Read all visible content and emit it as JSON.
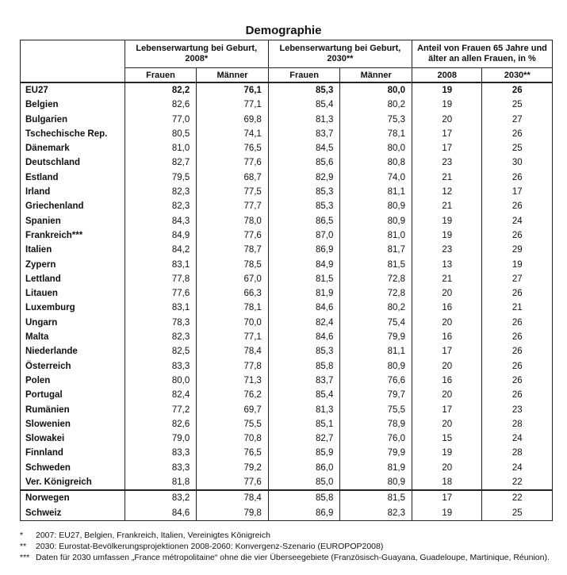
{
  "title": "Demographie",
  "headers": {
    "group1": "Lebenserwartung bei Geburt, 2008*",
    "group2": "Lebenserwartung bei Geburt, 2030**",
    "group3": "Anteil von Frauen 65 Jahre und älter an allen Frauen, in %",
    "sub": [
      "Frauen",
      "Männer",
      "Frauen",
      "Männer",
      "2008",
      "2030**"
    ]
  },
  "rows": [
    {
      "country": "EU27",
      "v": [
        "82,2",
        "76,1",
        "85,3",
        "80,0",
        "19",
        "26"
      ]
    },
    {
      "country": "Belgien",
      "v": [
        "82,6",
        "77,1",
        "85,4",
        "80,2",
        "19",
        "25"
      ]
    },
    {
      "country": "Bulgarien",
      "v": [
        "77,0",
        "69,8",
        "81,3",
        "75,3",
        "20",
        "27"
      ]
    },
    {
      "country": "Tschechische Rep.",
      "v": [
        "80,5",
        "74,1",
        "83,7",
        "78,1",
        "17",
        "26"
      ]
    },
    {
      "country": "Dänemark",
      "v": [
        "81,0",
        "76,5",
        "84,5",
        "80,0",
        "17",
        "25"
      ]
    },
    {
      "country": "Deutschland",
      "v": [
        "82,7",
        "77,6",
        "85,6",
        "80,8",
        "23",
        "30"
      ]
    },
    {
      "country": "Estland",
      "v": [
        "79,5",
        "68,7",
        "82,9",
        "74,0",
        "21",
        "26"
      ]
    },
    {
      "country": "Irland",
      "v": [
        "82,3",
        "77,5",
        "85,3",
        "81,1",
        "12",
        "17"
      ]
    },
    {
      "country": "Griechenland",
      "v": [
        "82,3",
        "77,7",
        "85,3",
        "80,9",
        "21",
        "26"
      ]
    },
    {
      "country": "Spanien",
      "v": [
        "84,3",
        "78,0",
        "86,5",
        "80,9",
        "19",
        "24"
      ]
    },
    {
      "country": "Frankreich***",
      "v": [
        "84,9",
        "77,6",
        "87,0",
        "81,0",
        "19",
        "26"
      ]
    },
    {
      "country": "Italien",
      "v": [
        "84,2",
        "78,7",
        "86,9",
        "81,7",
        "23",
        "29"
      ]
    },
    {
      "country": "Zypern",
      "v": [
        "83,1",
        "78,5",
        "84,9",
        "81,5",
        "13",
        "19"
      ]
    },
    {
      "country": "Lettland",
      "v": [
        "77,8",
        "67,0",
        "81,5",
        "72,8",
        "21",
        "27"
      ]
    },
    {
      "country": "Litauen",
      "v": [
        "77,6",
        "66,3",
        "81,9",
        "72,8",
        "20",
        "26"
      ]
    },
    {
      "country": "Luxemburg",
      "v": [
        "83,1",
        "78,1",
        "84,6",
        "80,2",
        "16",
        "21"
      ]
    },
    {
      "country": "Ungarn",
      "v": [
        "78,3",
        "70,0",
        "82,4",
        "75,4",
        "20",
        "26"
      ]
    },
    {
      "country": "Malta",
      "v": [
        "82,3",
        "77,1",
        "84,6",
        "79,9",
        "16",
        "26"
      ]
    },
    {
      "country": "Niederlande",
      "v": [
        "82,5",
        "78,4",
        "85,3",
        "81,1",
        "17",
        "26"
      ]
    },
    {
      "country": "Österreich",
      "v": [
        "83,3",
        "77,8",
        "85,8",
        "80,9",
        "20",
        "26"
      ]
    },
    {
      "country": "Polen",
      "v": [
        "80,0",
        "71,3",
        "83,7",
        "76,6",
        "16",
        "26"
      ]
    },
    {
      "country": "Portugal",
      "v": [
        "82,4",
        "76,2",
        "85,4",
        "79,7",
        "20",
        "26"
      ]
    },
    {
      "country": "Rumänien",
      "v": [
        "77,2",
        "69,7",
        "81,3",
        "75,5",
        "17",
        "23"
      ]
    },
    {
      "country": "Slowenien",
      "v": [
        "82,6",
        "75,5",
        "85,1",
        "78,9",
        "20",
        "28"
      ]
    },
    {
      "country": "Slowakei",
      "v": [
        "79,0",
        "70,8",
        "82,7",
        "76,0",
        "15",
        "24"
      ]
    },
    {
      "country": "Finnland",
      "v": [
        "83,3",
        "76,5",
        "85,9",
        "79,9",
        "19",
        "28"
      ]
    },
    {
      "country": "Schweden",
      "v": [
        "83,3",
        "79,2",
        "86,0",
        "81,9",
        "20",
        "24"
      ]
    },
    {
      "country": "Ver. Königreich",
      "v": [
        "81,8",
        "77,6",
        "85,0",
        "80,9",
        "18",
        "22"
      ]
    },
    {
      "country": "Norwegen",
      "v": [
        "83,2",
        "78,4",
        "85,8",
        "81,5",
        "17",
        "22"
      ]
    },
    {
      "country": "Schweiz",
      "v": [
        "84,6",
        "79,8",
        "86,9",
        "82,3",
        "19",
        "25"
      ]
    }
  ],
  "footnotes": [
    {
      "mark": "*",
      "text": "2007: EU27, Belgien, Frankreich, Italien, Vereinigtes Königreich"
    },
    {
      "mark": "**",
      "text": "2030: Eurostat-Bevölkerungsprojektionen 2008-2060: Konvergenz-Szenario (EUROPOP2008)"
    },
    {
      "mark": "***",
      "text": "Daten für 2030 umfassen „France métropolitaine“ ohne die vier Überseegebiete (Französisch-Guayana, Guadeloupe, Martinique, Réunion)."
    }
  ]
}
